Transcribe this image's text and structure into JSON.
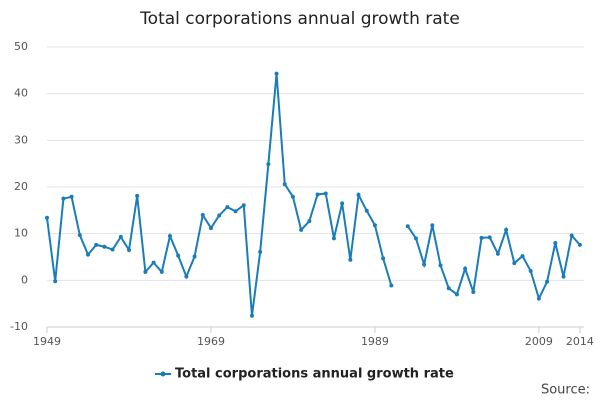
{
  "chart_data": {
    "type": "line",
    "title": "Total corporations annual growth rate",
    "source": "Source:",
    "x": [
      1949,
      1950,
      1951,
      1952,
      1953,
      1954,
      1955,
      1956,
      1957,
      1958,
      1959,
      1960,
      1961,
      1962,
      1963,
      1964,
      1965,
      1966,
      1967,
      1968,
      1969,
      1970,
      1971,
      1972,
      1973,
      1974,
      1975,
      1976,
      1977,
      1978,
      1979,
      1980,
      1981,
      1982,
      1983,
      1984,
      1985,
      1986,
      1987,
      1988,
      1989,
      1990,
      1991,
      1992,
      1993,
      1994,
      1995,
      1996,
      1997,
      1998,
      1999,
      2000,
      2001,
      2002,
      2003,
      2004,
      2005,
      2006,
      2007,
      2008,
      2009,
      2010,
      2011,
      2012,
      2013,
      2014
    ],
    "series": [
      {
        "name": "Total corporations annual growth rate",
        "color": "#1a7db8",
        "values": [
          13.4,
          -0.2,
          17.5,
          17.9,
          9.7,
          5.5,
          7.6,
          7.2,
          6.6,
          9.3,
          6.5,
          18.1,
          1.8,
          3.8,
          1.8,
          9.5,
          5.3,
          0.8,
          5.1,
          14.0,
          11.2,
          13.9,
          15.7,
          14.8,
          16.1,
          -7.6,
          6.1,
          24.9,
          44.3,
          20.6,
          17.9,
          10.8,
          12.7,
          18.4,
          18.6,
          9.0,
          16.5,
          4.4,
          18.3,
          14.9,
          11.8,
          4.7,
          -1.1,
          null,
          11.6,
          9.0,
          3.4,
          11.8,
          3.2,
          -1.7,
          -3.0,
          2.5,
          -2.5,
          9.1,
          9.2,
          5.7,
          10.8,
          3.7,
          5.2,
          2.0,
          -3.9,
          -0.3,
          8.0,
          0.8,
          9.6,
          7.6
        ]
      }
    ],
    "xlim": [
      1949,
      2014.5
    ],
    "xticks": [
      1949,
      1969,
      1989,
      2009,
      2014
    ],
    "ylim": [
      -10,
      50
    ],
    "yticks": [
      -10,
      0,
      10,
      20,
      30,
      40,
      50
    ],
    "grid": true,
    "legend": "bottom"
  }
}
